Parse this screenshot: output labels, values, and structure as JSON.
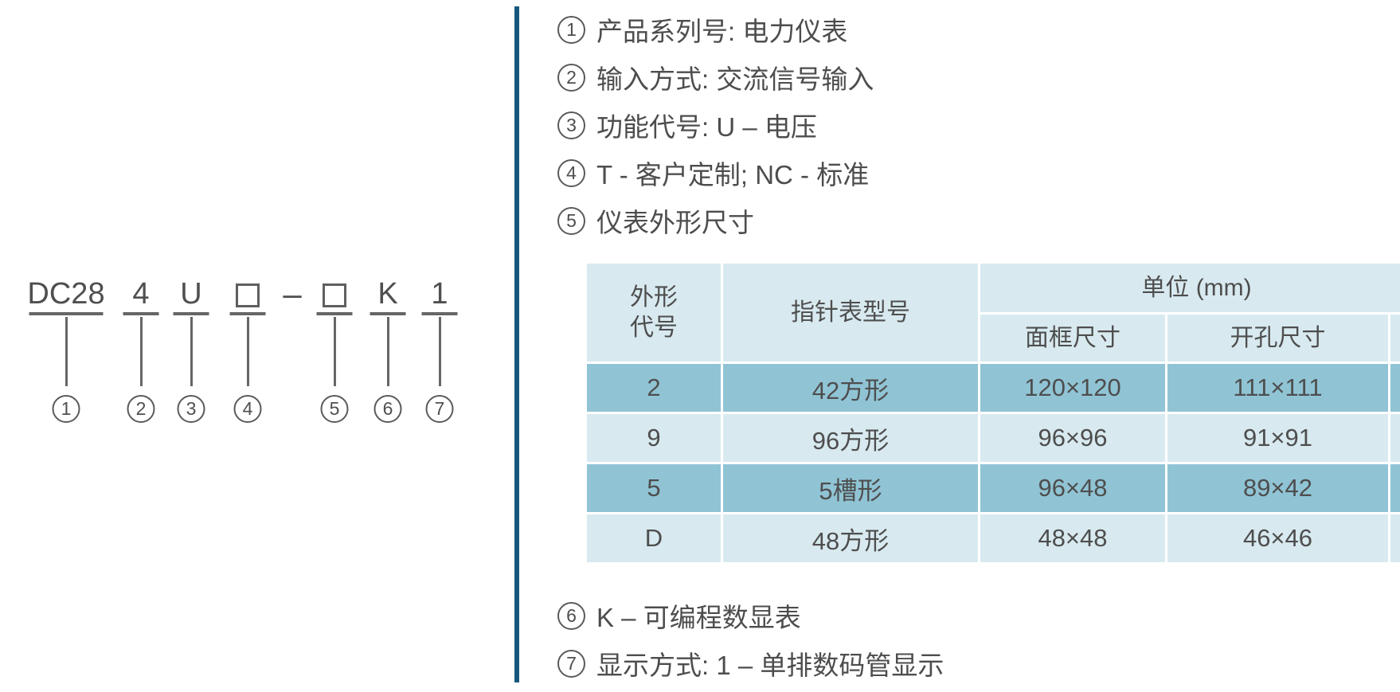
{
  "code_diagram": {
    "parts": [
      {
        "num": "1",
        "label": "DC28"
      },
      {
        "num": "2",
        "label": "4"
      },
      {
        "num": "3",
        "label": "U"
      },
      {
        "num": "4",
        "label": "□"
      },
      {
        "num": "5",
        "label": "□"
      },
      {
        "num": "6",
        "label": "K"
      },
      {
        "num": "7",
        "label": "1"
      }
    ],
    "separator": "–"
  },
  "legend": {
    "items": [
      {
        "num": "1",
        "text": "产品系列号: 电力仪表"
      },
      {
        "num": "2",
        "text": "输入方式: 交流信号输入"
      },
      {
        "num": "3",
        "text": "功能代号: U – 电压"
      },
      {
        "num": "4",
        "text": "T - 客户定制; NC - 标准"
      },
      {
        "num": "5",
        "text": "仪表外形尺寸"
      },
      {
        "num": "6",
        "text": "K – 可编程数显表"
      },
      {
        "num": "7",
        "text": "显示方式: 1 – 单排数码管显示"
      }
    ]
  },
  "table": {
    "header": {
      "shape_code_line1": "外形",
      "shape_code_line2": "代号",
      "pointer_model": "指针表型号",
      "unit_group": "单位 (mm)",
      "frame_size": "面框尺寸",
      "cutout_size": "开孔尺寸"
    },
    "rows": [
      {
        "code": "2",
        "model": "42方形",
        "frame": "120×120",
        "cutout": "111×111"
      },
      {
        "code": "9",
        "model": "96方形",
        "frame": "96×96",
        "cutout": "91×91"
      },
      {
        "code": "5",
        "model": "5槽形",
        "frame": "96×48",
        "cutout": "89×42"
      },
      {
        "code": "D",
        "model": "48方形",
        "frame": "48×48",
        "cutout": "46×46"
      }
    ]
  },
  "colors": {
    "divider": "#15587c",
    "rowdark": "#90c4d5",
    "rowlight": "#d8eaf0",
    "text": "#4d4d4d",
    "line": "#666666"
  }
}
